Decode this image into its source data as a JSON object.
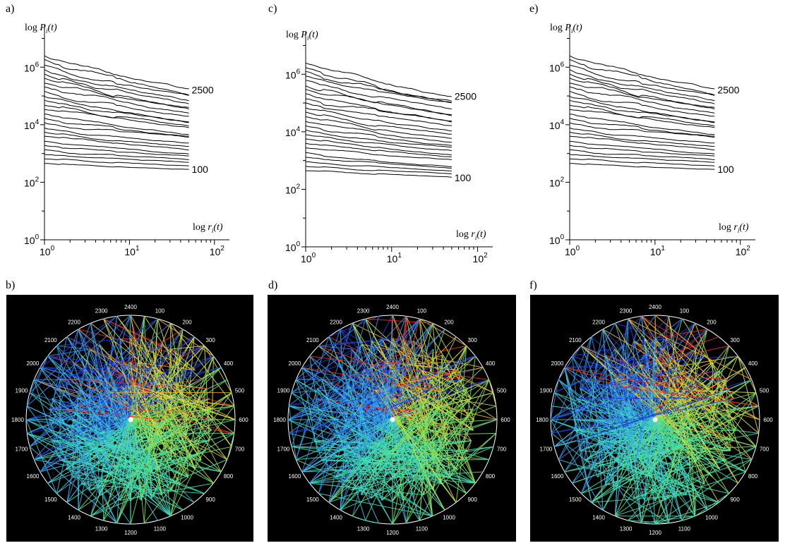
{
  "panel_labels": [
    "a)",
    "b)",
    "c)",
    "d)",
    "e)",
    "f)"
  ],
  "chart_data": [
    {
      "panel": "a)",
      "type": "line",
      "xscale": "log",
      "yscale": "log",
      "xlim": [
        1,
        150
      ],
      "ylim": [
        1,
        30000000
      ],
      "xticks": [
        {
          "value": 1,
          "base": "10",
          "exp": "0"
        },
        {
          "value": 10,
          "base": "10",
          "exp": "1"
        },
        {
          "value": 100,
          "base": "10",
          "exp": "2"
        }
      ],
      "yticks": [
        {
          "value": 1,
          "base": "10",
          "exp": "0"
        },
        {
          "value": 100,
          "base": "10",
          "exp": "2"
        },
        {
          "value": 10000,
          "base": "10",
          "exp": "4"
        },
        {
          "value": 1000000,
          "base": "10",
          "exp": "6"
        }
      ],
      "xlabel": {
        "prefix": "log ",
        "symbol": "r",
        "sub": "i",
        "arg": "(t)"
      },
      "ylabel": {
        "prefix": "log ",
        "symbol": "P",
        "sub": "i",
        "arg": "(t)"
      },
      "x_range": [
        1,
        50
      ],
      "series_count": 25,
      "top_start": 2500000,
      "top_end": 160000,
      "bottom_start": 450,
      "bottom_end": 280,
      "annotations": [
        {
          "text": "2500",
          "series": "top"
        },
        {
          "text": "100",
          "series": "bottom"
        }
      ]
    },
    {
      "panel": "c)",
      "type": "line",
      "xscale": "log",
      "yscale": "log",
      "xlim": [
        1,
        150
      ],
      "ylim": [
        1,
        30000000
      ],
      "xticks": [
        {
          "value": 1,
          "base": "10",
          "exp": "0"
        },
        {
          "value": 10,
          "base": "10",
          "exp": "1"
        },
        {
          "value": 100,
          "base": "10",
          "exp": "2"
        }
      ],
      "yticks": [
        {
          "value": 1,
          "base": "10",
          "exp": "0"
        },
        {
          "value": 100,
          "base": "10",
          "exp": "2"
        },
        {
          "value": 10000,
          "base": "10",
          "exp": "4"
        },
        {
          "value": 1000000,
          "base": "10",
          "exp": "6"
        }
      ],
      "xlabel": {
        "prefix": "log ",
        "symbol": "r",
        "sub": "i",
        "arg": "(t)"
      },
      "ylabel": {
        "prefix": "log ",
        "symbol": "P",
        "sub": "i",
        "arg": "(t)"
      },
      "x_range": [
        1,
        50
      ],
      "series_count": 25,
      "top_start": 2500000,
      "top_end": 170000,
      "bottom_start": 450,
      "bottom_end": 250,
      "annotations": [
        {
          "text": "2500",
          "series": "top"
        },
        {
          "text": "100",
          "series": "bottom"
        }
      ]
    },
    {
      "panel": "e)",
      "type": "line",
      "xscale": "log",
      "yscale": "log",
      "xlim": [
        1,
        150
      ],
      "ylim": [
        1,
        30000000
      ],
      "xticks": [
        {
          "value": 1,
          "base": "10",
          "exp": "0"
        },
        {
          "value": 10,
          "base": "10",
          "exp": "1"
        },
        {
          "value": 100,
          "base": "10",
          "exp": "2"
        }
      ],
      "yticks": [
        {
          "value": 1,
          "base": "10",
          "exp": "0"
        },
        {
          "value": 100,
          "base": "10",
          "exp": "2"
        },
        {
          "value": 10000,
          "base": "10",
          "exp": "4"
        },
        {
          "value": 1000000,
          "base": "10",
          "exp": "6"
        }
      ],
      "xlabel": {
        "prefix": "log ",
        "symbol": "r",
        "sub": "i",
        "arg": "(t)"
      },
      "ylabel": {
        "prefix": "log ",
        "symbol": "P",
        "sub": "i",
        "arg": "(t)"
      },
      "x_range": [
        1,
        50
      ],
      "series_count": 25,
      "top_start": 2500000,
      "top_end": 160000,
      "bottom_start": 450,
      "bottom_end": 280,
      "annotations": [
        {
          "text": "2500",
          "series": "top"
        },
        {
          "text": "100",
          "series": "bottom"
        }
      ]
    },
    {
      "panel": "b)",
      "type": "radial-network",
      "background": "#000000",
      "ring_labels": [
        "2400",
        "100",
        "200",
        "300",
        "400",
        "500",
        "600",
        "700",
        "800",
        "900",
        "1000",
        "1100",
        "1200",
        "1300",
        "1400",
        "1500",
        "1600",
        "1700",
        "1800",
        "1900",
        "2000",
        "2100",
        "2200",
        "2300"
      ],
      "colors": [
        "#1f3fd6",
        "#2f8fe8",
        "#3fc0e0",
        "#40e0b0",
        "#7ae060",
        "#d8e040",
        "#f0b020",
        "#e83020"
      ]
    },
    {
      "panel": "d)",
      "type": "radial-network",
      "background": "#000000",
      "ring_labels": [
        "2400",
        "100",
        "200",
        "300",
        "400",
        "500",
        "600",
        "700",
        "800",
        "900",
        "1000",
        "1100",
        "1200",
        "1300",
        "1400",
        "1500",
        "1600",
        "1700",
        "1800",
        "1900",
        "2000",
        "2100",
        "2200",
        "2300"
      ],
      "colors": [
        "#1f3fd6",
        "#2f8fe8",
        "#3fc0e0",
        "#40e0b0",
        "#7ae060",
        "#d8e040",
        "#f0b020",
        "#e83020"
      ]
    },
    {
      "panel": "f)",
      "type": "radial-network",
      "background": "#000000",
      "ring_labels": [
        "2400",
        "100",
        "200",
        "300",
        "400",
        "500",
        "600",
        "700",
        "800",
        "900",
        "1000",
        "1100",
        "1200",
        "1300",
        "1400",
        "1500",
        "1600",
        "1700",
        "1800",
        "1900",
        "2000",
        "2100",
        "2200",
        "2300"
      ],
      "colors": [
        "#1f3fd6",
        "#2f8fe8",
        "#3fc0e0",
        "#40e0b0",
        "#7ae060",
        "#d8e040",
        "#f0b020",
        "#e83020"
      ]
    }
  ]
}
